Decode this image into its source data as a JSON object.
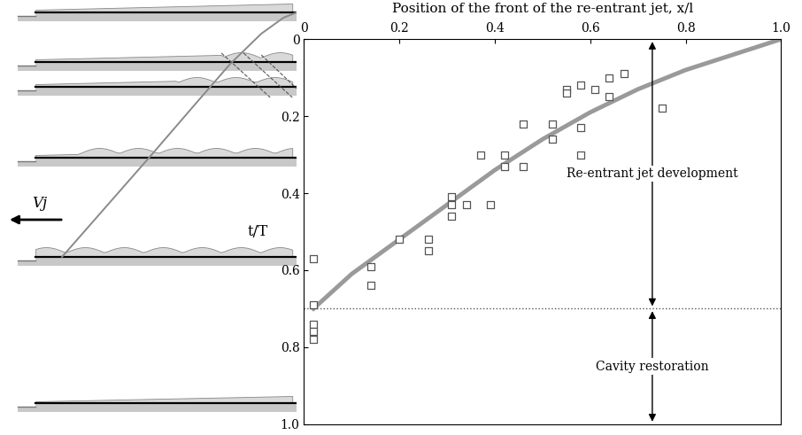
{
  "chart_data": {
    "type": "scatter",
    "xlabel": "Position of the front of the re-entrant jet, x/l",
    "ylabel": "t/T",
    "xlim": [
      0,
      1.0
    ],
    "xticks": [
      0,
      0.2,
      0.4,
      0.6,
      0.8,
      1.0
    ],
    "ylim": [
      1.0,
      0
    ],
    "yticks": [
      0,
      0.2,
      0.4,
      0.6,
      0.8,
      1.0
    ],
    "grid": false,
    "series": [
      {
        "type": "scatter",
        "marker": "square",
        "color": "#555555",
        "x": [
          0.02,
          0.02,
          0.02,
          0.02,
          0.02,
          0.14,
          0.14,
          0.2,
          0.26,
          0.26,
          0.31,
          0.31,
          0.31,
          0.34,
          0.37,
          0.39,
          0.42,
          0.42,
          0.46,
          0.46,
          0.52,
          0.52,
          0.55,
          0.55,
          0.58,
          0.58,
          0.58,
          0.61,
          0.64,
          0.64,
          0.67,
          0.75
        ],
        "values": [
          0.57,
          0.69,
          0.74,
          0.76,
          0.78,
          0.59,
          0.64,
          0.52,
          0.52,
          0.55,
          0.41,
          0.43,
          0.46,
          0.43,
          0.3,
          0.43,
          0.3,
          0.33,
          0.22,
          0.33,
          0.22,
          0.26,
          0.13,
          0.14,
          0.12,
          0.23,
          0.3,
          0.13,
          0.1,
          0.15,
          0.09,
          0.18
        ]
      },
      {
        "type": "line",
        "line_style": "solid",
        "color": "#9a9a9a",
        "x": [
          1.0,
          0.9,
          0.8,
          0.7,
          0.6,
          0.5,
          0.4,
          0.3,
          0.2,
          0.1,
          0.02
        ],
        "values": [
          0.0,
          0.04,
          0.08,
          0.13,
          0.19,
          0.26,
          0.34,
          0.43,
          0.52,
          0.61,
          0.7
        ]
      }
    ],
    "hline": {
      "value": 0.7,
      "line_style": "dotted",
      "color": "#555555"
    },
    "annotations": [
      {
        "text": "Re-entrant jet development",
        "y_range": [
          0,
          0.7
        ]
      },
      {
        "text": "Cavity restoration",
        "y_range": [
          0.7,
          1.0
        ]
      }
    ],
    "diagram": {
      "velocity_label": "Vj"
    }
  }
}
